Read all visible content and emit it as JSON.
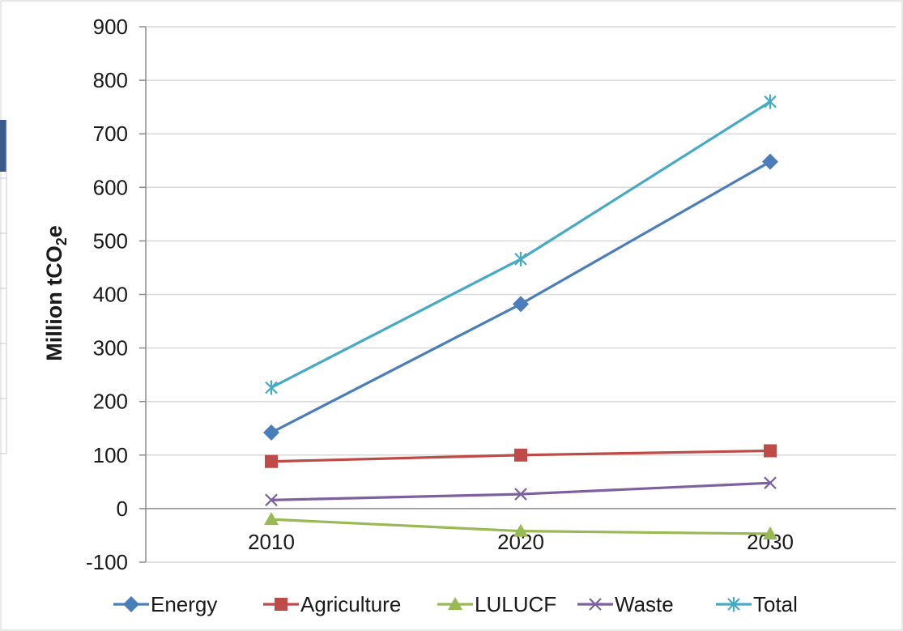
{
  "chart_data": {
    "type": "line",
    "title": "",
    "xlabel": "",
    "ylabel": {
      "main": "Million tCO",
      "subscript": "2",
      "suffix": "e"
    },
    "categories": [
      "2010",
      "2020",
      "2030"
    ],
    "ylim": [
      -100,
      900
    ],
    "y_ticks": [
      -100,
      0,
      100,
      200,
      300,
      400,
      500,
      600,
      700,
      800,
      900
    ],
    "grid": "horizontal",
    "legend_position": "bottom",
    "series": [
      {
        "name": "Energy",
        "values": [
          142,
          382,
          648
        ],
        "color": "#4a7ebb",
        "marker": "diamond-icon"
      },
      {
        "name": "Agriculture",
        "values": [
          88,
          100,
          108
        ],
        "color": "#be4b48",
        "marker": "square-icon"
      },
      {
        "name": "LULUCF",
        "values": [
          -20,
          -42,
          -47
        ],
        "color": "#98b954",
        "marker": "triangle-icon"
      },
      {
        "name": "Waste",
        "values": [
          16,
          27,
          48
        ],
        "color": "#7d60a0",
        "marker": "x-icon"
      },
      {
        "name": "Total",
        "values": [
          226,
          466,
          760
        ],
        "color": "#46aac5",
        "marker": "asterisk-icon"
      }
    ]
  }
}
